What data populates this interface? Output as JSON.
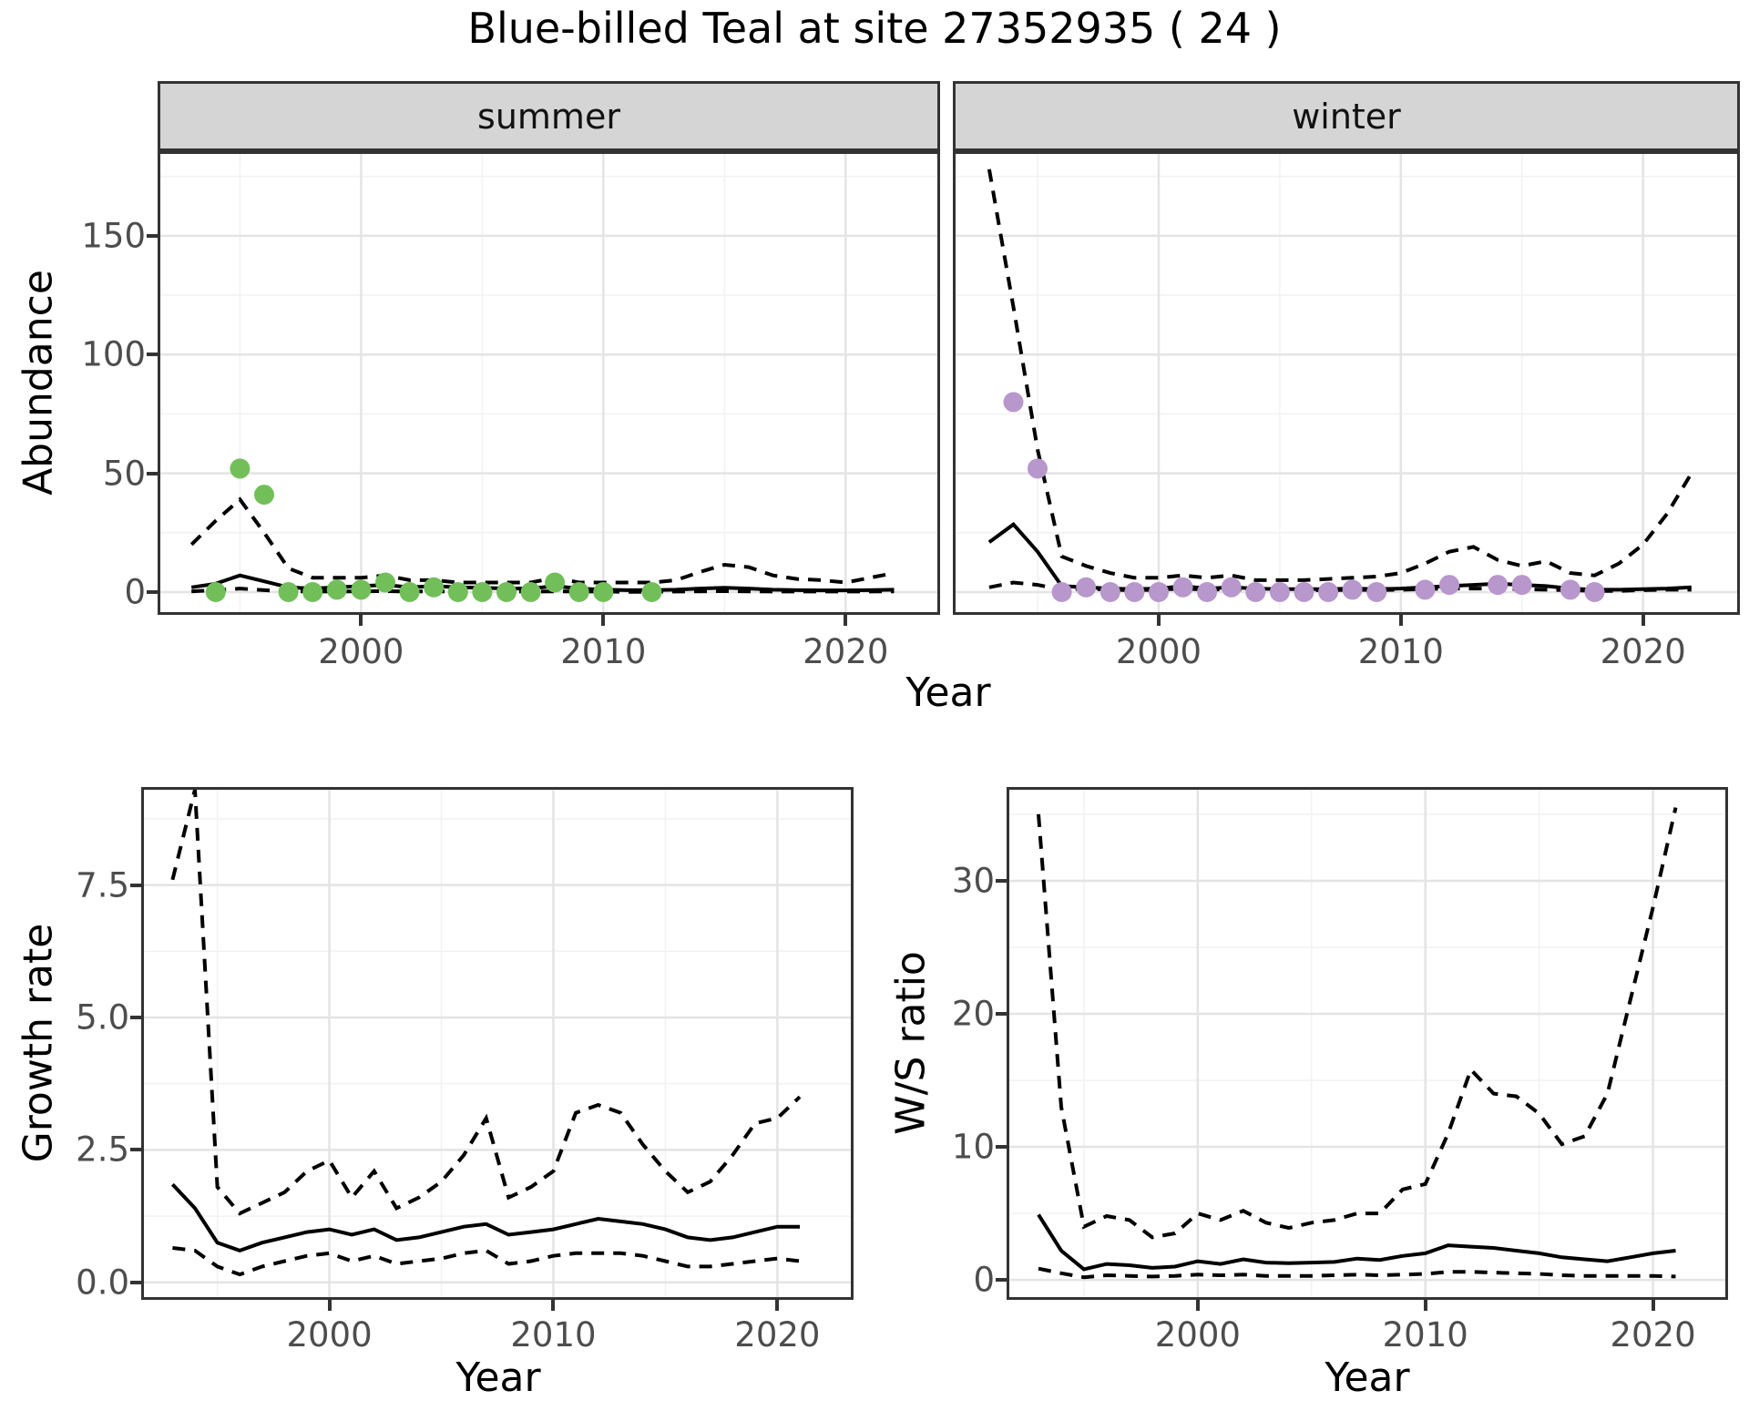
{
  "title": "Blue-billed Teal at site 27352935 ( 24 )",
  "colors": {
    "line": "#000000",
    "summer_points": "#72bf5a",
    "winter_points": "#b897cc",
    "grid_major": "#e4e4e4",
    "grid_minor": "#f2f2f2",
    "panel_border": "#333333",
    "strip_bg": "#d5d5d5",
    "tick_text": "#4d4d4d"
  },
  "chart_data": [
    {
      "key": "abundance-summer",
      "type": "line",
      "facet": "summer",
      "xlabel": "Year",
      "ylabel": "Abundance",
      "xlim": [
        1991.6,
        2023.9
      ],
      "ylim": [
        -9.6,
        185.6
      ],
      "x_major_ticks": [
        2000,
        2010,
        2020
      ],
      "x_minor_ticks": [
        1995,
        2005,
        2015
      ],
      "y_major_ticks": [
        0,
        50,
        100,
        150
      ],
      "y_tick_labels": [
        "0",
        "50",
        "100",
        "150"
      ],
      "y_minor_ticks": [
        25,
        75,
        125,
        175
      ],
      "grid": "major+minor",
      "legend": "none",
      "x": [
        1993,
        1994,
        1995,
        1996,
        1997,
        1998,
        1999,
        2000,
        2001,
        2002,
        2003,
        2004,
        2005,
        2006,
        2007,
        2008,
        2009,
        2010,
        2011,
        2012,
        2013,
        2014,
        2015,
        2016,
        2017,
        2018,
        2019,
        2020,
        2021,
        2022
      ],
      "series": [
        {
          "name": "median-fit",
          "style": "solid",
          "values": [
            2,
            3.5,
            7,
            4.5,
            2,
            1.5,
            2,
            2.5,
            3,
            2,
            2.5,
            2,
            1.8,
            1.5,
            1.5,
            2.5,
            1.5,
            1,
            0.8,
            0.8,
            1,
            1.5,
            1.8,
            1.5,
            1,
            0.8,
            0.7,
            0.7,
            0.8,
            1
          ]
        },
        {
          "name": "upper-ci",
          "style": "dashed",
          "values": [
            20,
            30,
            39,
            25,
            10,
            6,
            6,
            6,
            7,
            5,
            5,
            4,
            4,
            4,
            4,
            6,
            4,
            4,
            4,
            4,
            5,
            8.5,
            11.5,
            10.5,
            7,
            5.5,
            5,
            4,
            6,
            8
          ]
        },
        {
          "name": "lower-ci",
          "style": "dashed",
          "values": [
            0.3,
            0.8,
            1.5,
            0.8,
            0.3,
            0.2,
            0.3,
            0.3,
            0.4,
            0.2,
            0.3,
            0.2,
            0.2,
            0.2,
            0.2,
            0.3,
            0.2,
            0.2,
            0.1,
            0.1,
            0.2,
            0.3,
            0.4,
            0.3,
            0.2,
            0.2,
            0.2,
            0.2,
            0.2,
            0.3
          ]
        }
      ],
      "points": {
        "name": "observed-counts",
        "color": "#72bf5a",
        "x": [
          1994,
          1995,
          1996,
          1997,
          1998,
          1999,
          2000,
          2001,
          2002,
          2003,
          2004,
          2005,
          2006,
          2007,
          2008,
          2009,
          2010,
          2012
        ],
        "y": [
          0,
          52,
          41,
          0,
          0,
          1,
          1,
          4,
          0,
          2,
          0,
          0,
          0,
          0,
          4,
          0,
          0,
          0
        ]
      }
    },
    {
      "key": "abundance-winter",
      "type": "line",
      "facet": "winter",
      "xlabel": "Year",
      "ylabel": "Abundance",
      "xlim": [
        1991.5,
        2024.0
      ],
      "ylim": [
        -9.6,
        185.6
      ],
      "x_major_ticks": [
        2000,
        2010,
        2020
      ],
      "x_minor_ticks": [
        1995,
        2005,
        2015
      ],
      "y_major_ticks": [
        0,
        50,
        100,
        150
      ],
      "y_tick_labels": [],
      "y_minor_ticks": [
        25,
        75,
        125,
        175
      ],
      "grid": "major+minor",
      "legend": "none",
      "x": [
        1993,
        1994,
        1995,
        1996,
        1997,
        1998,
        1999,
        2000,
        2001,
        2002,
        2003,
        2004,
        2005,
        2006,
        2007,
        2008,
        2009,
        2010,
        2011,
        2012,
        2013,
        2014,
        2015,
        2016,
        2017,
        2018,
        2019,
        2020,
        2021,
        2022
      ],
      "series": [
        {
          "name": "median-fit",
          "style": "solid",
          "values": [
            21,
            28.5,
            17,
            2.5,
            2,
            1.5,
            1.2,
            1.5,
            2.5,
            1.5,
            2,
            1.5,
            1.2,
            1.2,
            1.2,
            1.5,
            1.2,
            1.5,
            2,
            2.5,
            3,
            3.5,
            3,
            2.5,
            1.5,
            1,
            1,
            1.2,
            1.5,
            2
          ]
        },
        {
          "name": "upper-ci",
          "style": "dashed",
          "values": [
            178,
            120,
            60,
            15,
            11,
            8,
            6,
            6,
            7,
            6,
            7,
            5,
            5,
            5,
            5.5,
            6,
            6.5,
            8,
            12,
            17,
            19,
            13.5,
            11,
            13,
            8,
            7,
            12,
            20,
            33,
            50
          ]
        },
        {
          "name": "lower-ci",
          "style": "dashed",
          "values": [
            2,
            4,
            3,
            1,
            1.5,
            1,
            0.8,
            1,
            1.5,
            1,
            1.2,
            0.8,
            0.8,
            0.8,
            0.8,
            1,
            0.8,
            1,
            1.2,
            1.5,
            1.5,
            1.5,
            1.2,
            1,
            0.8,
            0.5,
            0.5,
            0.8,
            1,
            1
          ]
        }
      ],
      "points": {
        "name": "observed-counts",
        "color": "#b897cc",
        "x": [
          1994,
          1995,
          1996,
          1997,
          1998,
          1999,
          2000,
          2001,
          2002,
          2003,
          2004,
          2005,
          2006,
          2007,
          2008,
          2009,
          2011,
          2012,
          2014,
          2015,
          2017,
          2018
        ],
        "y": [
          80,
          52,
          0,
          2,
          0,
          0,
          0,
          2,
          0,
          2,
          0,
          0,
          0,
          0,
          1,
          0,
          1,
          3,
          3,
          3,
          1,
          0
        ]
      }
    },
    {
      "key": "growth-rate",
      "type": "line",
      "facet": "",
      "xlabel": "Year",
      "ylabel": "Growth rate",
      "xlim": [
        1991.6,
        2023.4
      ],
      "ylim": [
        -0.33,
        9.35
      ],
      "x_major_ticks": [
        2000,
        2010,
        2020
      ],
      "x_minor_ticks": [
        1995,
        2005,
        2015
      ],
      "y_major_ticks": [
        0,
        2.5,
        5,
        7.5
      ],
      "y_tick_labels": [
        "0.0",
        "2.5",
        "5.0",
        "7.5"
      ],
      "y_minor_ticks": [
        1.25,
        3.75,
        6.25,
        8.75
      ],
      "grid": "major+minor",
      "legend": "none",
      "x": [
        1993,
        1994,
        1995,
        1996,
        1997,
        1998,
        1999,
        2000,
        2001,
        2002,
        2003,
        2004,
        2005,
        2006,
        2007,
        2008,
        2009,
        2010,
        2011,
        2012,
        2013,
        2014,
        2015,
        2016,
        2017,
        2018,
        2019,
        2020,
        2021
      ],
      "series": [
        {
          "name": "median-fit",
          "style": "solid",
          "values": [
            1.85,
            1.4,
            0.75,
            0.6,
            0.75,
            0.85,
            0.95,
            1.0,
            0.9,
            1.0,
            0.8,
            0.85,
            0.95,
            1.05,
            1.1,
            0.9,
            0.95,
            1.0,
            1.1,
            1.2,
            1.15,
            1.1,
            1.0,
            0.85,
            0.8,
            0.85,
            0.95,
            1.05,
            1.05
          ]
        },
        {
          "name": "upper-ci",
          "style": "dashed",
          "values": [
            7.6,
            9.3,
            1.8,
            1.3,
            1.5,
            1.7,
            2.1,
            2.3,
            1.6,
            2.1,
            1.4,
            1.6,
            1.9,
            2.4,
            3.1,
            1.6,
            1.8,
            2.1,
            3.2,
            3.35,
            3.2,
            2.6,
            2.1,
            1.7,
            1.9,
            2.4,
            3.0,
            3.1,
            3.5
          ]
        },
        {
          "name": "lower-ci",
          "style": "dashed",
          "values": [
            0.65,
            0.6,
            0.3,
            0.15,
            0.3,
            0.4,
            0.5,
            0.55,
            0.4,
            0.5,
            0.35,
            0.4,
            0.45,
            0.55,
            0.6,
            0.35,
            0.4,
            0.5,
            0.55,
            0.55,
            0.55,
            0.5,
            0.4,
            0.3,
            0.3,
            0.35,
            0.4,
            0.45,
            0.4
          ]
        }
      ],
      "points": null
    },
    {
      "key": "ws-ratio",
      "type": "line",
      "facet": "",
      "xlabel": "Year",
      "ylabel": "W/S ratio",
      "xlim": [
        1991.6,
        2023.3
      ],
      "ylim": [
        -1.5,
        37.05
      ],
      "x_major_ticks": [
        2000,
        2010,
        2020
      ],
      "x_minor_ticks": [
        1995,
        2005,
        2015
      ],
      "y_major_ticks": [
        0,
        10,
        20,
        30
      ],
      "y_tick_labels": [
        "0",
        "10",
        "20",
        "30"
      ],
      "y_minor_ticks": [
        5,
        15,
        25,
        35
      ],
      "grid": "major+minor",
      "legend": "none",
      "x": [
        1993,
        1994,
        1995,
        1996,
        1997,
        1998,
        1999,
        2000,
        2001,
        2002,
        2003,
        2004,
        2005,
        2006,
        2007,
        2008,
        2009,
        2010,
        2011,
        2012,
        2013,
        2014,
        2015,
        2016,
        2017,
        2018,
        2019,
        2020,
        2021
      ],
      "series": [
        {
          "name": "median-fit",
          "style": "solid",
          "values": [
            4.9,
            2.2,
            0.8,
            1.2,
            1.1,
            0.9,
            1.0,
            1.4,
            1.2,
            1.55,
            1.3,
            1.25,
            1.3,
            1.35,
            1.6,
            1.5,
            1.8,
            2.0,
            2.6,
            2.5,
            2.4,
            2.2,
            2.0,
            1.7,
            1.55,
            1.4,
            1.7,
            2.0,
            2.2
          ]
        },
        {
          "name": "upper-ci",
          "style": "dashed",
          "values": [
            35,
            13,
            4,
            4.8,
            4.5,
            3.2,
            3.5,
            5.0,
            4.5,
            5.2,
            4.3,
            3.9,
            4.3,
            4.5,
            5.0,
            5.0,
            6.8,
            7.2,
            11,
            15.8,
            14,
            13.8,
            12.5,
            10.2,
            10.8,
            14,
            21,
            28,
            35.5
          ]
        },
        {
          "name": "lower-ci",
          "style": "dashed",
          "values": [
            0.85,
            0.5,
            0.2,
            0.35,
            0.3,
            0.25,
            0.3,
            0.4,
            0.35,
            0.4,
            0.3,
            0.3,
            0.3,
            0.35,
            0.4,
            0.35,
            0.4,
            0.45,
            0.6,
            0.6,
            0.55,
            0.5,
            0.45,
            0.35,
            0.3,
            0.3,
            0.3,
            0.3,
            0.25
          ]
        }
      ],
      "points": null
    }
  ]
}
